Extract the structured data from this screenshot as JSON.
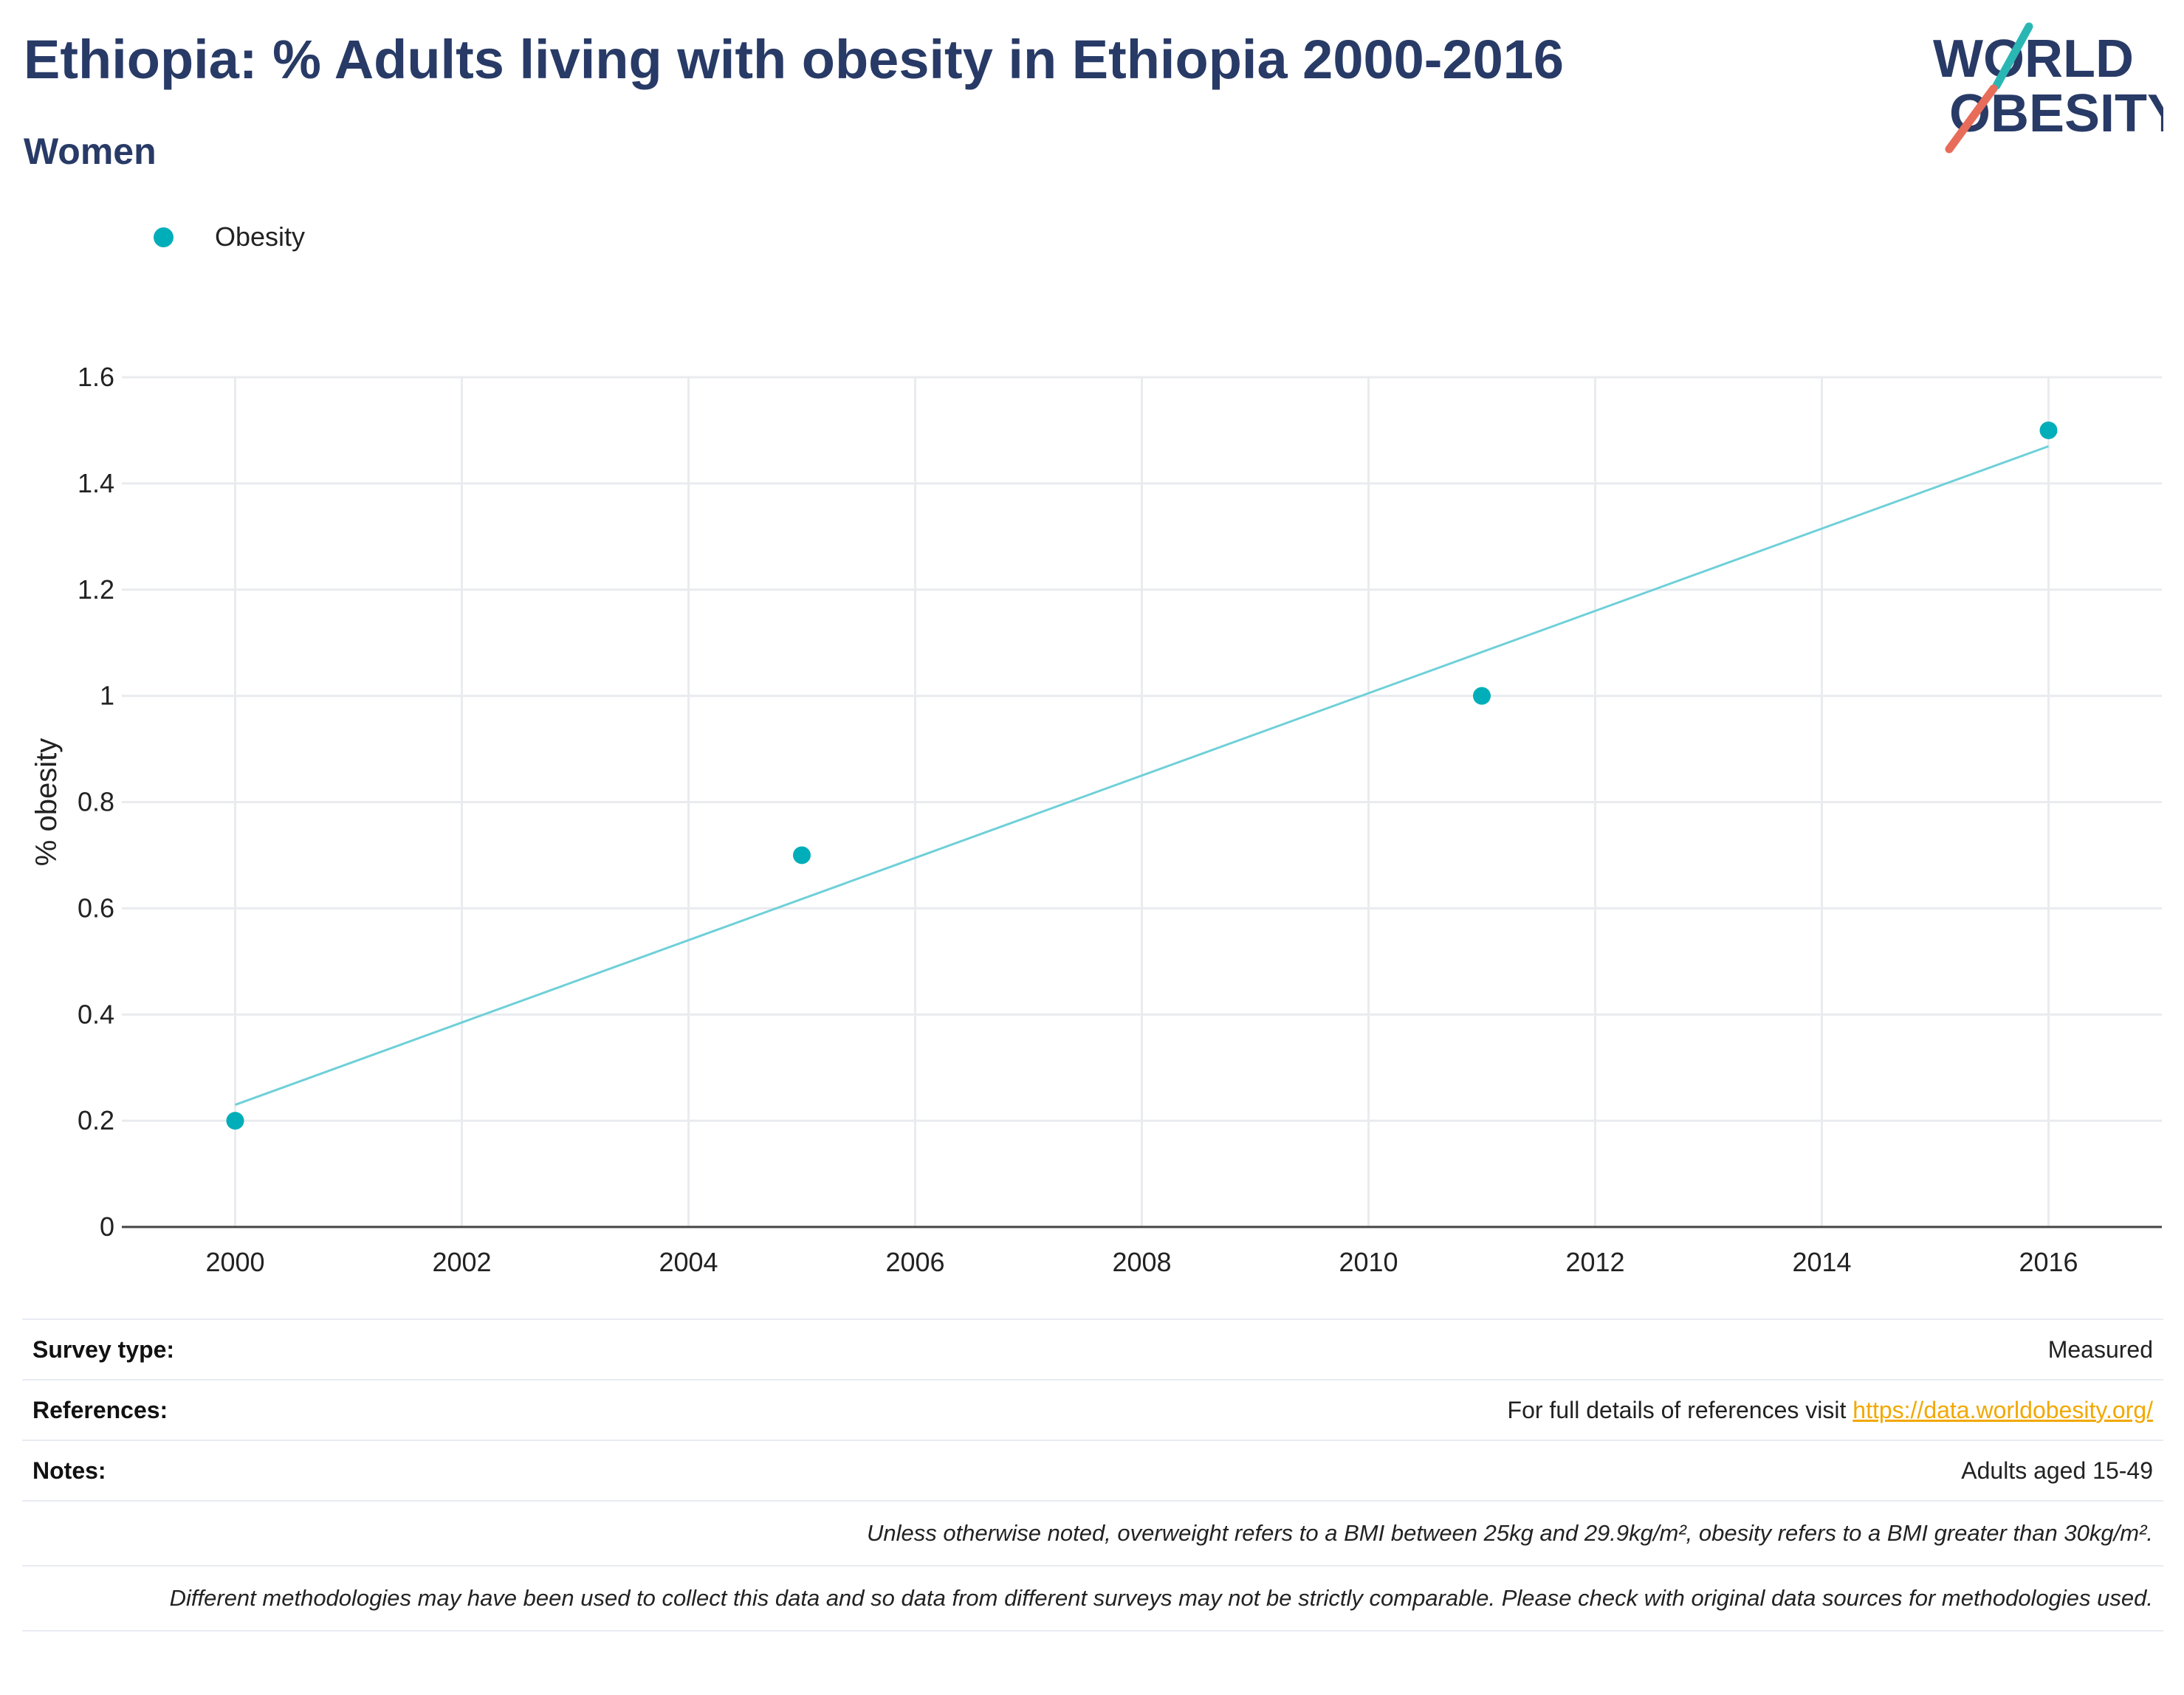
{
  "header": {
    "title": "Ethiopia: % Adults living with obesity in Ethiopia 2000-2016",
    "subtitle": "Women",
    "logo_line1": "WORLD",
    "logo_line2": "OBESITY"
  },
  "legend": {
    "label": "Obesity"
  },
  "colors": {
    "marker": "#00aeb9",
    "trendline": "#6fd0d8",
    "title": "#283a66",
    "grid": "#e9ebef",
    "link": "#f2a800",
    "logo_teal": "#2ab7b4",
    "logo_coral": "#e86c5a"
  },
  "chart_data": {
    "type": "scatter",
    "ylabel": "% obesity",
    "xlabel": "",
    "xlim": [
      1999,
      2017
    ],
    "ylim": [
      0,
      1.6
    ],
    "x_ticks": [
      2000,
      2002,
      2004,
      2006,
      2008,
      2010,
      2012,
      2014,
      2016
    ],
    "y_ticks": [
      0,
      0.2,
      0.4,
      0.6,
      0.8,
      1,
      1.2,
      1.4,
      1.6
    ],
    "y_tick_labels": [
      "0",
      "0.2",
      "0.4",
      "0.6",
      "0.8",
      "1",
      "1.2",
      "1.4",
      "1.6"
    ],
    "grid": true,
    "legend_position": "top-left",
    "series": [
      {
        "name": "Obesity",
        "x": [
          2000,
          2005,
          2011,
          2016
        ],
        "y": [
          0.2,
          0.7,
          1.0,
          1.5
        ]
      }
    ],
    "trendline": {
      "x": [
        2000,
        2016
      ],
      "y": [
        0.23,
        1.47
      ]
    }
  },
  "info": {
    "survey_type_label": "Survey type:",
    "survey_type_value": "Measured",
    "references_label": "References:",
    "references_text": "For full details of references visit ",
    "references_link": "https://data.worldobesity.org/",
    "notes_label": "Notes:",
    "notes_value": "Adults aged 15-49",
    "note_bmi": "Unless otherwise noted, overweight refers to a BMI between 25kg and 29.9kg/m², obesity refers to a BMI greater than 30kg/m².",
    "note_methods": "Different methodologies may have been used to collect this data and so data from different surveys may not be strictly comparable. Please check with original data sources for methodologies used."
  }
}
